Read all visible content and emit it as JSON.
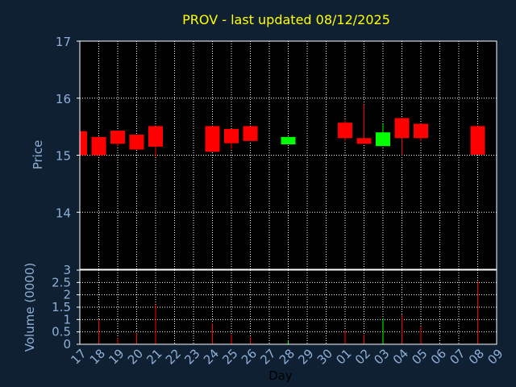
{
  "title": "PROV - last updated 08/12/2025",
  "chart_data": {
    "type": "candlestick",
    "title": "PROV - last updated 08/12/2025",
    "xlabel": "Day",
    "ylabel": "Price",
    "vlabel": "Volume (0000)",
    "price_ylim": [
      13.0,
      17.0
    ],
    "price_yticks": [
      "14",
      "15",
      "16",
      "17"
    ],
    "volume_ylim": [
      0,
      3
    ],
    "volume_yticks": [
      "0",
      "0.5",
      "1",
      "1.5",
      "2",
      "2.5",
      "3"
    ],
    "grid": true,
    "x_labels": [
      "17",
      "18",
      "19",
      "20",
      "21",
      "22",
      "23",
      "24",
      "25",
      "26",
      "27",
      "28",
      "29",
      "30",
      "01",
      "02",
      "03",
      "04",
      "05",
      "06",
      "07",
      "08",
      "09"
    ],
    "candles": [
      {
        "day": "17",
        "open": 15.42,
        "close": 15.0,
        "high": 15.42,
        "low": 15.0,
        "color": "#ff0000",
        "volume": 0.0
      },
      {
        "day": "18",
        "open": 15.32,
        "close": 15.0,
        "high": 15.32,
        "low": 14.98,
        "color": "#ff0000",
        "volume": 1.0
      },
      {
        "day": "19",
        "open": 15.43,
        "close": 15.2,
        "high": 15.43,
        "low": 15.15,
        "color": "#ff0000",
        "volume": 0.25
      },
      {
        "day": "20",
        "open": 15.36,
        "close": 15.1,
        "high": 15.36,
        "low": 15.1,
        "color": "#ff0000",
        "volume": 0.45
      },
      {
        "day": "21",
        "open": 15.51,
        "close": 15.15,
        "high": 15.51,
        "low": 14.97,
        "color": "#ff0000",
        "volume": 1.6
      },
      {
        "day": "24",
        "open": 15.51,
        "close": 15.06,
        "high": 15.51,
        "low": 15.06,
        "color": "#ff0000",
        "volume": 0.85
      },
      {
        "day": "25",
        "open": 15.46,
        "close": 15.21,
        "high": 15.46,
        "low": 15.11,
        "color": "#ff0000",
        "volume": 0.4
      },
      {
        "day": "26",
        "open": 15.51,
        "close": 15.25,
        "high": 15.51,
        "low": 15.25,
        "color": "#ff0000",
        "volume": 0.3
      },
      {
        "day": "28",
        "open": 15.19,
        "close": 15.32,
        "high": 15.32,
        "low": 15.19,
        "color": "#00ff00",
        "volume": 0.15
      },
      {
        "day": "01",
        "open": 15.57,
        "close": 15.3,
        "high": 15.61,
        "low": 15.24,
        "color": "#ff0000",
        "volume": 0.55
      },
      {
        "day": "02",
        "open": 15.3,
        "close": 15.2,
        "high": 15.89,
        "low": 15.2,
        "color": "#ff0000",
        "volume": 0.4
      },
      {
        "day": "03",
        "open": 15.16,
        "close": 15.4,
        "high": 15.55,
        "low": 15.16,
        "color": "#00ff00",
        "volume": 1.05
      },
      {
        "day": "04",
        "open": 15.65,
        "close": 15.3,
        "high": 15.65,
        "low": 15.0,
        "color": "#ff0000",
        "volume": 1.2
      },
      {
        "day": "05",
        "open": 15.55,
        "close": 15.3,
        "high": 15.55,
        "low": 15.25,
        "color": "#ff0000",
        "volume": 0.7
      },
      {
        "day": "08",
        "open": 15.51,
        "close": 15.01,
        "high": 15.51,
        "low": 15.01,
        "color": "#ff0000",
        "volume": 2.55
      }
    ]
  }
}
